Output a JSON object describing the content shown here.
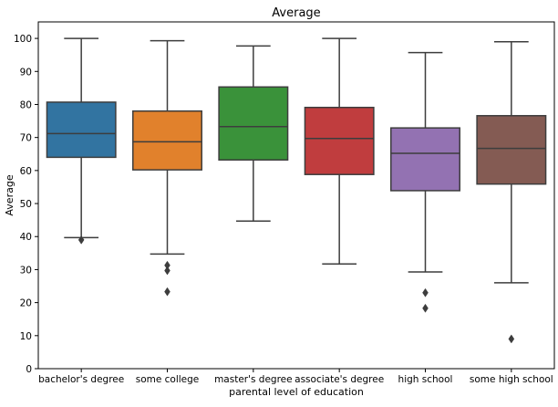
{
  "chart_data": {
    "type": "box",
    "title": "Average",
    "xlabel": "parental level of education",
    "ylabel": "Average",
    "ylim": [
      0,
      105
    ],
    "yticks": [
      0,
      10,
      20,
      30,
      40,
      50,
      60,
      70,
      80,
      90,
      100
    ],
    "grid": false,
    "legend": "none",
    "categories": [
      "bachelor's degree",
      "some college",
      "master's degree",
      "associate's degree",
      "high school",
      "some high school"
    ],
    "colors": [
      "#3274a1",
      "#e1812c",
      "#3a923a",
      "#c03d3e",
      "#9372b2",
      "#845b53"
    ],
    "boxes": [
      {
        "whisker_low": 39.7,
        "q1": 64.0,
        "median": 71.2,
        "q3": 80.7,
        "whisker_high": 100.0,
        "outliers": [
          39.0
        ]
      },
      {
        "whisker_low": 34.7,
        "q1": 60.2,
        "median": 68.7,
        "q3": 78.0,
        "whisker_high": 99.3,
        "outliers": [
          31.3,
          29.7,
          23.3
        ]
      },
      {
        "whisker_low": 44.7,
        "q1": 63.2,
        "median": 73.3,
        "q3": 85.3,
        "whisker_high": 97.7,
        "outliers": []
      },
      {
        "whisker_low": 31.7,
        "q1": 58.8,
        "median": 69.7,
        "q3": 79.1,
        "whisker_high": 100.0,
        "outliers": []
      },
      {
        "whisker_low": 29.3,
        "q1": 53.9,
        "median": 65.2,
        "q3": 72.9,
        "whisker_high": 95.7,
        "outliers": [
          23.0,
          18.3
        ]
      },
      {
        "whisker_low": 26.0,
        "q1": 55.9,
        "median": 66.7,
        "q3": 76.6,
        "whisker_high": 99.0,
        "outliers": [
          9.0
        ]
      }
    ]
  }
}
